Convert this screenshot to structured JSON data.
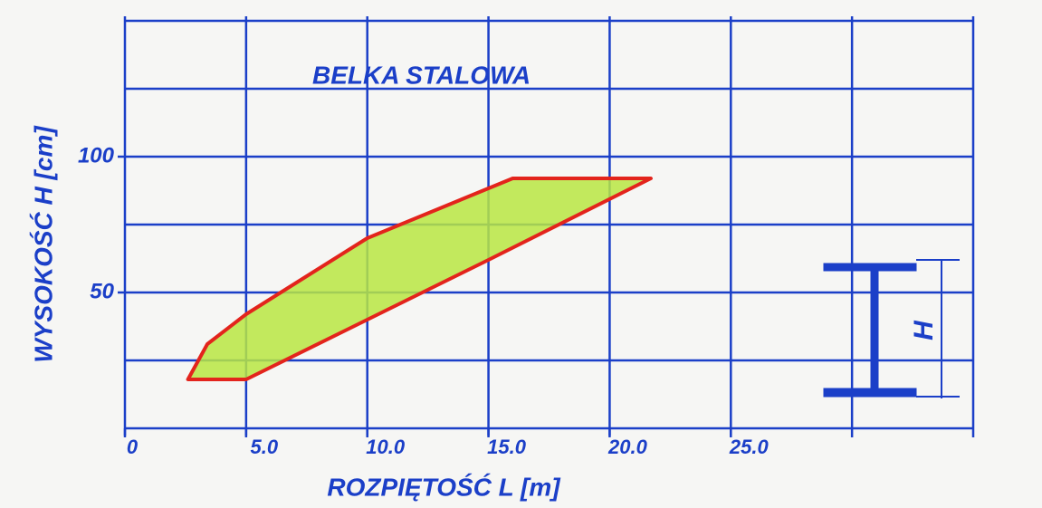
{
  "chart_data": {
    "type": "polygon",
    "title": "BELKA STALOWA",
    "x_label": "ROZPIĘTOŚĆ L [m]",
    "y_label": "WYSOKOŚĆ H [cm]",
    "beam_label": "H",
    "series": [
      {
        "color": "#b9e642",
        "edge_color": "#e3241c",
        "x": [
          2.6,
          5,
          15,
          21.7,
          16,
          10,
          5,
          3.4
        ],
        "y": [
          18,
          18,
          62,
          92,
          92,
          70,
          42,
          31
        ]
      }
    ],
    "xlim": [
      0,
      35
    ],
    "ylim": [
      0,
      150
    ],
    "xticks": [
      0,
      {
        "value": 5,
        "label": "5.0"
      },
      {
        "value": 10,
        "label": "10.0"
      },
      {
        "value": 15,
        "label": "15.0"
      },
      {
        "value": 20,
        "label": "20.0"
      },
      {
        "value": 25,
        "label": "25.0"
      }
    ],
    "yticks": [
      50,
      100
    ],
    "xgrid": [
      0,
      5,
      10,
      15,
      20,
      25,
      30,
      35
    ],
    "ygrid": [
      0,
      25,
      50,
      75,
      100,
      125,
      150
    ],
    "grid_color": "#1b3fc8"
  }
}
